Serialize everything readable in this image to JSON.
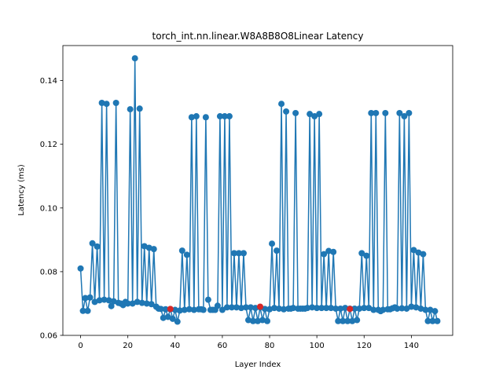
{
  "chart_data": {
    "type": "line",
    "title": "torch_int.nn.linear.W8A8B8O8Linear Latency",
    "xlabel": "Layer Index",
    "ylabel": "Latency (ms)",
    "xlim": [
      -7.5,
      157.5
    ],
    "ylim": [
      0.06,
      0.151
    ],
    "xticks": [
      0,
      20,
      40,
      60,
      80,
      100,
      120,
      140
    ],
    "yticks": [
      0.06,
      0.08,
      0.1,
      0.12,
      0.14
    ],
    "ytick_labels": [
      "0.06",
      "0.08",
      "0.10",
      "0.12",
      "0.14"
    ],
    "line_color": "#1f77b4",
    "highlight_color": "#d62728",
    "grid": false,
    "legend": "none",
    "series": [
      {
        "values": [
          0.081,
          0.0677,
          0.0717,
          0.0677,
          0.0719,
          0.0889,
          0.0705,
          0.0879,
          0.071,
          0.133,
          0.0712,
          0.1327,
          0.071,
          0.0692,
          0.0707,
          0.133,
          0.0702,
          0.07,
          0.0695,
          0.0705,
          0.07,
          0.131,
          0.07,
          0.147,
          0.0705,
          0.1312,
          0.0702,
          0.088,
          0.07,
          0.0875,
          0.0698,
          0.0871,
          0.069,
          0.0684,
          0.0683,
          0.0655,
          0.0682,
          0.0658,
          0.0682,
          0.0652,
          0.068,
          0.0643,
          0.0678,
          0.0866,
          0.068,
          0.0853,
          0.0682,
          0.1285,
          0.068,
          0.1288,
          0.0682,
          0.0682,
          0.068,
          0.1285,
          0.0712,
          0.068,
          0.068,
          0.068,
          0.0693,
          0.1288,
          0.068,
          0.1288,
          0.0688,
          0.1288,
          0.0688,
          0.0858,
          0.0688,
          0.0858,
          0.0686,
          0.0858,
          0.0688,
          0.0648,
          0.0688,
          0.0645,
          0.0686,
          0.0645,
          0.0688,
          0.0648,
          0.0683,
          0.0645,
          0.0682,
          0.0888,
          0.0686,
          0.0866,
          0.0684,
          0.1327,
          0.0682,
          0.1303,
          0.0684,
          0.0684,
          0.0686,
          0.1298,
          0.0684,
          0.0684,
          0.0684,
          0.0684,
          0.0686,
          0.1295,
          0.0688,
          0.1288,
          0.0686,
          0.1295,
          0.0686,
          0.0855,
          0.0686,
          0.0865,
          0.0686,
          0.0862,
          0.0684,
          0.0645,
          0.0684,
          0.0645,
          0.0686,
          0.0645,
          0.0684,
          0.0645,
          0.0684,
          0.0648,
          0.0684,
          0.0858,
          0.0686,
          0.085,
          0.0686,
          0.1298,
          0.068,
          0.1298,
          0.068,
          0.0676,
          0.068,
          0.1298,
          0.0682,
          0.0682,
          0.0685,
          0.0688,
          0.0684,
          0.1298,
          0.0685,
          0.1288,
          0.0684,
          0.1298,
          0.069,
          0.0868,
          0.0688,
          0.086,
          0.0684,
          0.0855,
          0.068,
          0.0645,
          0.068,
          0.0645,
          0.0676,
          0.0645
        ]
      }
    ],
    "highlighted_points": [
      {
        "x": 38,
        "y": 0.0683
      },
      {
        "x": 76,
        "y": 0.069
      },
      {
        "x": 114,
        "y": 0.0683
      }
    ]
  }
}
